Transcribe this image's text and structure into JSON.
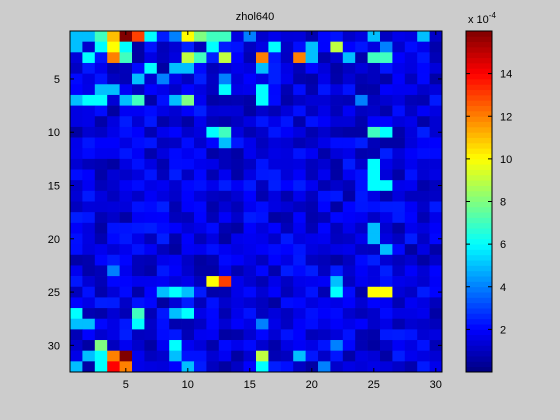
{
  "chart_data": {
    "type": "heatmap",
    "title": "zhol640",
    "xlabel": "",
    "ylabel": "",
    "n_cols": 30,
    "n_rows": 32,
    "x_ticks": [
      5,
      10,
      15,
      20,
      25,
      30
    ],
    "y_ticks": [
      5,
      10,
      15,
      20,
      25,
      30
    ],
    "y_reversed": true,
    "colormap": "jet",
    "clim": [
      0,
      0.0016
    ],
    "colorbar": {
      "ticks": [
        2,
        4,
        6,
        8,
        10,
        12,
        14
      ],
      "exponent_label": "x 10",
      "exponent": "-4",
      "multiplier": 0.0001
    },
    "background": "#cccccc",
    "base_value": 0.00015,
    "hot_cells": [
      {
        "row": 1,
        "col": 1,
        "value": 0.0005
      },
      {
        "row": 1,
        "col": 2,
        "value": 0.0005
      },
      {
        "row": 1,
        "col": 3,
        "value": 0.0007
      },
      {
        "row": 1,
        "col": 4,
        "value": 0.0011
      },
      {
        "row": 1,
        "col": 5,
        "value": 0.0016
      },
      {
        "row": 1,
        "col": 6,
        "value": 0.0013
      },
      {
        "row": 1,
        "col": 7,
        "value": 0.0006
      },
      {
        "row": 1,
        "col": 9,
        "value": 0.0004
      },
      {
        "row": 1,
        "col": 10,
        "value": 0.001
      },
      {
        "row": 1,
        "col": 11,
        "value": 0.0008
      },
      {
        "row": 1,
        "col": 12,
        "value": 0.0007
      },
      {
        "row": 1,
        "col": 13,
        "value": 0.0007
      },
      {
        "row": 1,
        "col": 15,
        "value": 0.0004
      },
      {
        "row": 1,
        "col": 25,
        "value": 0.0005
      },
      {
        "row": 1,
        "col": 29,
        "value": 0.0005
      },
      {
        "row": 2,
        "col": 1,
        "value": 0.0005
      },
      {
        "row": 2,
        "col": 3,
        "value": 0.0006
      },
      {
        "row": 2,
        "col": 4,
        "value": 0.001
      },
      {
        "row": 2,
        "col": 5,
        "value": 0.0006
      },
      {
        "row": 2,
        "col": 12,
        "value": 0.0006
      },
      {
        "row": 2,
        "col": 17,
        "value": 0.0006
      },
      {
        "row": 2,
        "col": 20,
        "value": 0.0005
      },
      {
        "row": 2,
        "col": 22,
        "value": 0.0009
      },
      {
        "row": 2,
        "col": 26,
        "value": 0.0004
      },
      {
        "row": 3,
        "col": 2,
        "value": 0.0006
      },
      {
        "row": 3,
        "col": 4,
        "value": 0.0012
      },
      {
        "row": 3,
        "col": 5,
        "value": 0.0007
      },
      {
        "row": 3,
        "col": 10,
        "value": 0.0009
      },
      {
        "row": 3,
        "col": 11,
        "value": 0.0007
      },
      {
        "row": 3,
        "col": 13,
        "value": 0.0009
      },
      {
        "row": 3,
        "col": 16,
        "value": 0.0012
      },
      {
        "row": 3,
        "col": 19,
        "value": 0.0012
      },
      {
        "row": 3,
        "col": 20,
        "value": 0.0005
      },
      {
        "row": 3,
        "col": 23,
        "value": 0.0005
      },
      {
        "row": 3,
        "col": 25,
        "value": 0.0007
      },
      {
        "row": 3,
        "col": 26,
        "value": 0.0007
      },
      {
        "row": 4,
        "col": 7,
        "value": 0.0006
      },
      {
        "row": 4,
        "col": 9,
        "value": 0.0005
      },
      {
        "row": 4,
        "col": 10,
        "value": 0.0005
      },
      {
        "row": 4,
        "col": 16,
        "value": 0.0005
      },
      {
        "row": 5,
        "col": 6,
        "value": 0.0005
      },
      {
        "row": 5,
        "col": 8,
        "value": 0.0004
      },
      {
        "row": 5,
        "col": 13,
        "value": 0.0004
      },
      {
        "row": 6,
        "col": 3,
        "value": 0.0005
      },
      {
        "row": 6,
        "col": 4,
        "value": 0.0005
      },
      {
        "row": 6,
        "col": 13,
        "value": 0.0006
      },
      {
        "row": 6,
        "col": 16,
        "value": 0.0006
      },
      {
        "row": 7,
        "col": 1,
        "value": 0.0005
      },
      {
        "row": 7,
        "col": 2,
        "value": 0.0006
      },
      {
        "row": 7,
        "col": 3,
        "value": 0.0006
      },
      {
        "row": 7,
        "col": 5,
        "value": 0.0005
      },
      {
        "row": 7,
        "col": 6,
        "value": 0.0007
      },
      {
        "row": 7,
        "col": 9,
        "value": 0.0005
      },
      {
        "row": 7,
        "col": 10,
        "value": 0.0008
      },
      {
        "row": 7,
        "col": 16,
        "value": 0.0006
      },
      {
        "row": 7,
        "col": 24,
        "value": 0.0004
      },
      {
        "row": 10,
        "col": 12,
        "value": 0.0006
      },
      {
        "row": 10,
        "col": 13,
        "value": 0.0007
      },
      {
        "row": 10,
        "col": 25,
        "value": 0.0007
      },
      {
        "row": 10,
        "col": 26,
        "value": 0.0006
      },
      {
        "row": 11,
        "col": 13,
        "value": 0.0005
      },
      {
        "row": 13,
        "col": 25,
        "value": 0.0006
      },
      {
        "row": 14,
        "col": 25,
        "value": 0.0006
      },
      {
        "row": 15,
        "col": 25,
        "value": 0.0006
      },
      {
        "row": 15,
        "col": 26,
        "value": 0.0006
      },
      {
        "row": 19,
        "col": 25,
        "value": 0.0005
      },
      {
        "row": 20,
        "col": 25,
        "value": 0.0005
      },
      {
        "row": 21,
        "col": 26,
        "value": 0.0005
      },
      {
        "row": 23,
        "col": 4,
        "value": 0.0004
      },
      {
        "row": 24,
        "col": 12,
        "value": 0.001
      },
      {
        "row": 24,
        "col": 13,
        "value": 0.0013
      },
      {
        "row": 24,
        "col": 22,
        "value": 0.0005
      },
      {
        "row": 25,
        "col": 8,
        "value": 0.0005
      },
      {
        "row": 25,
        "col": 9,
        "value": 0.0006
      },
      {
        "row": 25,
        "col": 10,
        "value": 0.0005
      },
      {
        "row": 25,
        "col": 22,
        "value": 0.0006
      },
      {
        "row": 25,
        "col": 25,
        "value": 0.001
      },
      {
        "row": 25,
        "col": 26,
        "value": 0.001
      },
      {
        "row": 27,
        "col": 1,
        "value": 0.0006
      },
      {
        "row": 27,
        "col": 6,
        "value": 0.0007
      },
      {
        "row": 27,
        "col": 9,
        "value": 0.0005
      },
      {
        "row": 27,
        "col": 10,
        "value": 0.0006
      },
      {
        "row": 28,
        "col": 1,
        "value": 0.0005
      },
      {
        "row": 28,
        "col": 2,
        "value": 0.0005
      },
      {
        "row": 28,
        "col": 6,
        "value": 0.0006
      },
      {
        "row": 28,
        "col": 16,
        "value": 0.0004
      },
      {
        "row": 30,
        "col": 3,
        "value": 0.0008
      },
      {
        "row": 30,
        "col": 9,
        "value": 0.0006
      },
      {
        "row": 30,
        "col": 22,
        "value": 0.0004
      },
      {
        "row": 31,
        "col": 2,
        "value": 0.0005
      },
      {
        "row": 31,
        "col": 3,
        "value": 0.0006
      },
      {
        "row": 31,
        "col": 4,
        "value": 0.0012
      },
      {
        "row": 31,
        "col": 5,
        "value": 0.0016
      },
      {
        "row": 31,
        "col": 9,
        "value": 0.0005
      },
      {
        "row": 31,
        "col": 16,
        "value": 0.0009
      },
      {
        "row": 31,
        "col": 19,
        "value": 0.0005
      },
      {
        "row": 32,
        "col": 1,
        "value": 0.0005
      },
      {
        "row": 32,
        "col": 3,
        "value": 0.0006
      },
      {
        "row": 32,
        "col": 4,
        "value": 0.0014
      },
      {
        "row": 32,
        "col": 5,
        "value": 0.0012
      },
      {
        "row": 32,
        "col": 10,
        "value": 0.0005
      },
      {
        "row": 32,
        "col": 16,
        "value": 0.0006
      },
      {
        "row": 32,
        "col": 21,
        "value": 0.0004
      }
    ]
  }
}
